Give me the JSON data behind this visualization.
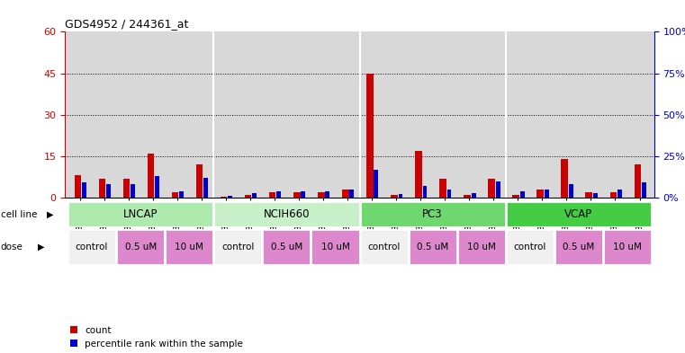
{
  "title": "GDS4952 / 244361_at",
  "samples": [
    "GSM1359772",
    "GSM1359773",
    "GSM1359774",
    "GSM1359775",
    "GSM1359776",
    "GSM1359777",
    "GSM1359760",
    "GSM1359761",
    "GSM1359762",
    "GSM1359763",
    "GSM1359764",
    "GSM1359765",
    "GSM1359778",
    "GSM1359779",
    "GSM1359780",
    "GSM1359781",
    "GSM1359782",
    "GSM1359783",
    "GSM1359766",
    "GSM1359767",
    "GSM1359768",
    "GSM1359769",
    "GSM1359770",
    "GSM1359771"
  ],
  "red_values": [
    8,
    7,
    7,
    16,
    2,
    12,
    0.5,
    1,
    2,
    2,
    2,
    3,
    45,
    1,
    17,
    7,
    1,
    7,
    1,
    3,
    14,
    2,
    2,
    12
  ],
  "blue_values": [
    9,
    8,
    8,
    13,
    4,
    12,
    1,
    3,
    4,
    4,
    4,
    5,
    17,
    2,
    7,
    5,
    3,
    10,
    4,
    5,
    8,
    3,
    5,
    9
  ],
  "ylim_left": [
    0,
    60
  ],
  "ylim_right": [
    0,
    100
  ],
  "yticks_left": [
    0,
    15,
    30,
    45,
    60
  ],
  "yticks_right": [
    0,
    25,
    50,
    75,
    100
  ],
  "yticklabels_left": [
    "0",
    "15",
    "30",
    "45",
    "60"
  ],
  "yticklabels_right": [
    "0%",
    "25%",
    "50%",
    "75%",
    "100%"
  ],
  "red_color": "#cc0000",
  "blue_color": "#0000cc",
  "bg_color": "#d8d8d8",
  "cell_line_groups": [
    {
      "label": "LNCAP",
      "start": 0,
      "end": 6,
      "color": "#aeeaae"
    },
    {
      "label": "NCIH660",
      "start": 6,
      "end": 12,
      "color": "#c8f0c8"
    },
    {
      "label": "PC3",
      "start": 12,
      "end": 18,
      "color": "#6ed86e"
    },
    {
      "label": "VCAP",
      "start": 18,
      "end": 24,
      "color": "#44cc44"
    }
  ],
  "dose_groups": [
    {
      "label": "control",
      "start": 0,
      "end": 2,
      "color": "#f0f0f0"
    },
    {
      "label": "0.5 uM",
      "start": 2,
      "end": 4,
      "color": "#dd88cc"
    },
    {
      "label": "10 uM",
      "start": 4,
      "end": 6,
      "color": "#dd88cc"
    },
    {
      "label": "control",
      "start": 6,
      "end": 8,
      "color": "#f0f0f0"
    },
    {
      "label": "0.5 uM",
      "start": 8,
      "end": 10,
      "color": "#dd88cc"
    },
    {
      "label": "10 uM",
      "start": 10,
      "end": 12,
      "color": "#dd88cc"
    },
    {
      "label": "control",
      "start": 12,
      "end": 14,
      "color": "#f0f0f0"
    },
    {
      "label": "0.5 uM",
      "start": 14,
      "end": 16,
      "color": "#dd88cc"
    },
    {
      "label": "10 uM",
      "start": 16,
      "end": 18,
      "color": "#dd88cc"
    },
    {
      "label": "control",
      "start": 18,
      "end": 20,
      "color": "#f0f0f0"
    },
    {
      "label": "0.5 uM",
      "start": 20,
      "end": 22,
      "color": "#dd88cc"
    },
    {
      "label": "10 uM",
      "start": 22,
      "end": 24,
      "color": "#dd88cc"
    }
  ]
}
